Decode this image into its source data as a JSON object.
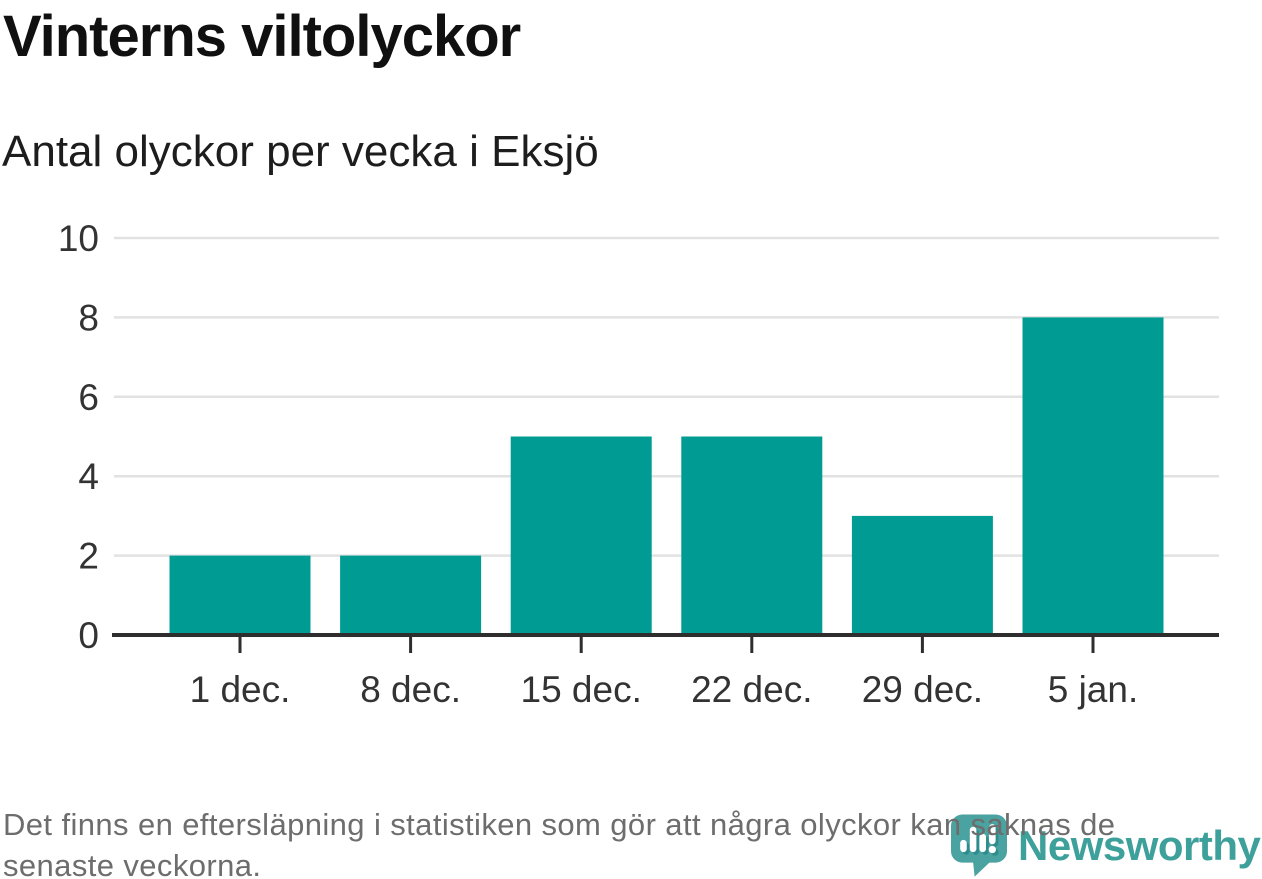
{
  "header": {
    "title": "Vinterns viltolyckor",
    "subtitle": "Antal olyckor per vecka i Eksjö"
  },
  "chart_data": {
    "type": "bar",
    "title": "Vinterns viltolyckor",
    "subtitle": "Antal olyckor per vecka i Eksjö",
    "categories": [
      "1 dec.",
      "8 dec.",
      "15 dec.",
      "22 dec.",
      "29 dec.",
      "5 jan."
    ],
    "values": [
      2,
      2,
      5,
      5,
      3,
      8
    ],
    "xlabel": "",
    "ylabel": "",
    "ylim": [
      0,
      10
    ],
    "yticks": [
      0,
      2,
      4,
      6,
      8,
      10
    ],
    "grid": "horizontal",
    "legend": "none",
    "bar_color": "#009c94"
  },
  "footnote": {
    "lines": [
      "Det finns en eftersläpning i statistiken som gör att några olyckor kan saknas de",
      "senaste veckorna."
    ]
  },
  "branding": {
    "wordmark": "Newsworthy",
    "icon": "newsworthy-chart-speech-bubble-icon",
    "color": "#3da09b"
  },
  "colors": {
    "background": "#ffffff",
    "bar": "#009c94",
    "axis": "#2e2e2e",
    "grid": "#e2e2e2",
    "tick_label": "#333333",
    "title": "#101010",
    "subtitle": "#1d1d1d",
    "footnote": "#6d6d6d",
    "icon_bubble": "#4aa2a1",
    "icon_shadow": "#2e8c8d"
  }
}
